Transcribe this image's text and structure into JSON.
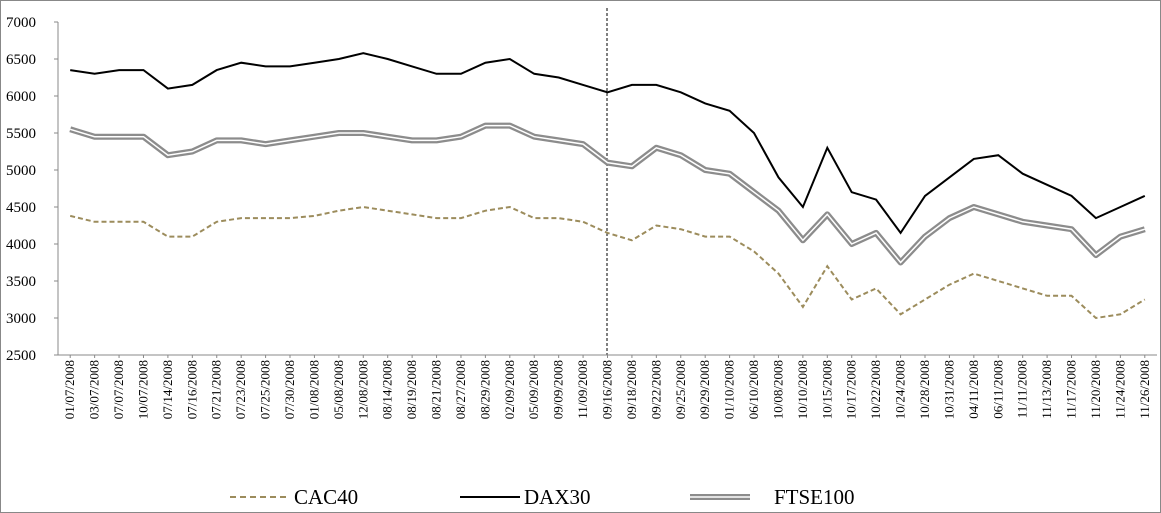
{
  "chart_data": {
    "type": "line",
    "categories": [
      "01/07/2008",
      "03/07/2008",
      "07/07/2008",
      "10/07/2008",
      "07/14/2008",
      "07/16/2008",
      "07/21/2008",
      "07/23/2008",
      "07/25/2008",
      "07/30/2008",
      "01/08/2008",
      "05/08/2008",
      "12/08/2008",
      "08/14/2008",
      "08/19/2008",
      "08/21/2008",
      "08/27/2008",
      "08/29/2008",
      "02/09/2008",
      "05/09/2008",
      "09/09/2008",
      "11/09/2008",
      "09/16/2008",
      "09/18/2008",
      "09/22/2008",
      "09/25/2008",
      "09/29/2008",
      "01/10/2008",
      "06/10/2008",
      "10/08/2008",
      "10/10/2008",
      "10/15/2008",
      "10/17/2008",
      "10/22/2008",
      "10/24/2008",
      "10/28/2008",
      "10/31/2008",
      "04/11/2008",
      "06/11/2008",
      "11/11/2008",
      "11/13/2008",
      "11/17/2008",
      "11/20/2008",
      "11/24/2008",
      "11/26/2008"
    ],
    "series": [
      {
        "name": "CAC40",
        "color": "#9c8c5c",
        "style": "dashed",
        "values": [
          4380,
          4300,
          4300,
          4300,
          4100,
          4100,
          4300,
          4350,
          4350,
          4350,
          4380,
          4450,
          4500,
          4450,
          4400,
          4350,
          4350,
          4450,
          4500,
          4350,
          4350,
          4300,
          4150,
          4050,
          4250,
          4200,
          4100,
          4100,
          3900,
          3600,
          3150,
          3700,
          3250,
          3400,
          3050,
          3250,
          3450,
          3600,
          3500,
          3400,
          3300,
          3300,
          3000,
          3050,
          3250
        ]
      },
      {
        "name": "DAX30",
        "color": "#000000",
        "style": "solid",
        "values": [
          6350,
          6300,
          6350,
          6350,
          6100,
          6150,
          6350,
          6450,
          6400,
          6400,
          6450,
          6500,
          6580,
          6500,
          6400,
          6300,
          6300,
          6450,
          6500,
          6300,
          6250,
          6150,
          6050,
          6150,
          6150,
          6050,
          5900,
          5800,
          5500,
          4900,
          4500,
          5300,
          4700,
          4600,
          4150,
          4650,
          4900,
          5150,
          5200,
          4950,
          4800,
          4650,
          4350,
          4500,
          4650
        ]
      },
      {
        "name": "FTSE100",
        "color": "#8c8c8c",
        "style": "double",
        "values": [
          5550,
          5450,
          5450,
          5450,
          5200,
          5250,
          5400,
          5400,
          5350,
          5400,
          5450,
          5500,
          5500,
          5450,
          5400,
          5400,
          5450,
          5600,
          5600,
          5450,
          5400,
          5350,
          5100,
          5050,
          5300,
          5200,
          5000,
          4950,
          4700,
          4450,
          4050,
          4400,
          4000,
          4150,
          3750,
          4100,
          4350,
          4500,
          4400,
          4300,
          4250,
          4200,
          3850,
          4100,
          4200
        ]
      }
    ],
    "ylim": [
      2500,
      7000
    ],
    "yticks": [
      2500,
      3000,
      3500,
      4000,
      4500,
      5000,
      5500,
      6000,
      6500,
      7000
    ],
    "grid": false,
    "legend": "bottom"
  }
}
